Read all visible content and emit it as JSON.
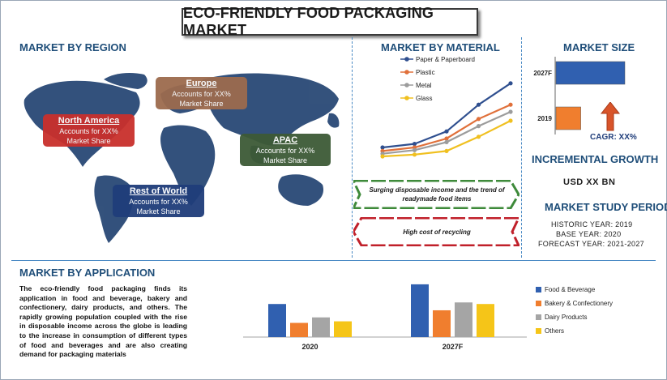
{
  "title": "ECO-FRIENDLY FOOD PACKAGING MARKET",
  "sections": {
    "region": "MARKET BY REGION",
    "material": "MARKET BY MATERIAL",
    "size": "MARKET SIZE",
    "incremental": "INCREMENTAL GROWTH",
    "period": "MARKET STUDY PERIOD",
    "application": "MARKET BY APPLICATION"
  },
  "regions": [
    {
      "name": "Europe",
      "text": "Accounts for XX%",
      "text2": "Market Share",
      "color": "#9c6b4e"
    },
    {
      "name": "North America",
      "text": "Accounts for XX%",
      "text2": "Market Share",
      "color": "#c9302c"
    },
    {
      "name": "APAC",
      "text": "Accounts for XX%",
      "text2": "Market Share",
      "color": "#3d5a36"
    },
    {
      "name": "Rest of World",
      "text": "Accounts for XX%",
      "text2": "Market Share",
      "color": "#1f3d7a"
    }
  ],
  "drivers": {
    "driver": "Surging disposable income and the trend of readymade food items",
    "restraint": "High cost of recycling"
  },
  "market_size": {
    "cagr": "CAGR: XX%",
    "incremental_value": "USD XX BN",
    "bar_color_future": "#3060b0",
    "bar_color_base": "#f07e2e",
    "arrow_color": "#d8542a"
  },
  "period": {
    "historic": "HISTORIC YEAR: 2019",
    "base": "BASE YEAR: 2020",
    "forecast": "FORECAST YEAR: 2021-2027"
  },
  "application_text": "The eco-friendly food packaging finds its application in food and beverage, bakery and confectionery, dairy products, and others. The rapidly growing population coupled with the rise in disposable income across the globe is leading to the increase in consumption of different types of food and beverages and are also creating demand for packaging materials",
  "chart_data": [
    {
      "type": "line",
      "x": [
        1,
        2,
        3,
        4,
        5
      ],
      "series": [
        {
          "name": "Paper & Paperboard",
          "values": [
            20,
            24,
            38,
            68,
            92
          ],
          "color": "#2f4f8f"
        },
        {
          "name": "Plastic",
          "values": [
            16,
            20,
            30,
            52,
            68
          ],
          "color": "#e0703a"
        },
        {
          "name": "Metal",
          "values": [
            13,
            17,
            26,
            44,
            60
          ],
          "color": "#9c9c9c"
        },
        {
          "name": "Glass",
          "values": [
            10,
            12,
            16,
            32,
            50
          ],
          "color": "#f0c020"
        }
      ],
      "ylim": [
        0,
        100
      ],
      "legend": "top-left",
      "grid": false
    },
    {
      "type": "bar",
      "orientation": "horizontal",
      "categories": [
        "2027F",
        "2019"
      ],
      "values": [
        100,
        36
      ],
      "colors": [
        "#3060b0",
        "#f07e2e"
      ]
    },
    {
      "type": "bar",
      "categories": [
        "2020",
        "2027F"
      ],
      "series": [
        {
          "name": "Food & Beverage",
          "values": [
            42,
            67
          ],
          "color": "#3060b0"
        },
        {
          "name": "Bakery & Confectionery",
          "values": [
            18,
            34
          ],
          "color": "#f07e2e"
        },
        {
          "name": "Dairy Products",
          "values": [
            25,
            44
          ],
          "color": "#a5a5a5"
        },
        {
          "name": "Others",
          "values": [
            20,
            42
          ],
          "color": "#f5c518"
        }
      ],
      "ylim": [
        0,
        70
      ],
      "legend": "right",
      "grid": false
    }
  ]
}
